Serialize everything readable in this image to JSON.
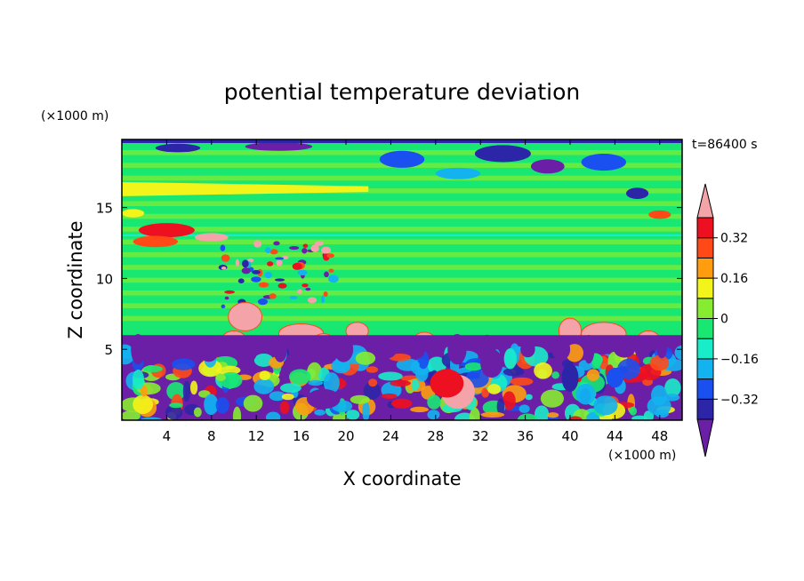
{
  "chart_data": {
    "type": "heatmap",
    "title": "potential temperature deviation",
    "xlabel": "X coordinate",
    "ylabel": "Z coordinate",
    "x_unit": "(×1000 m)",
    "y_unit": "(×1000 m)",
    "time_label": "t=86400 s",
    "x_range": [
      0,
      50
    ],
    "y_range": [
      0,
      19.8
    ],
    "x_ticks": [
      4,
      8,
      12,
      16,
      20,
      24,
      28,
      32,
      36,
      40,
      44,
      48
    ],
    "y_ticks": [
      5,
      10,
      15
    ],
    "colorbar": {
      "levels": [
        -0.4,
        -0.32,
        -0.24,
        -0.16,
        -0.08,
        0,
        0.08,
        0.16,
        0.24,
        0.32,
        0.4
      ],
      "labels": [
        {
          "value": 0.32,
          "text": "0.32"
        },
        {
          "value": 0.16,
          "text": "0.16"
        },
        {
          "value": 0,
          "text": "0"
        },
        {
          "value": -0.16,
          "text": "−0.16"
        },
        {
          "value": -0.32,
          "text": "−0.32"
        }
      ],
      "colors": [
        "#6a1fa6",
        "#2d25a8",
        "#1a50f0",
        "#13b3f0",
        "#18ecc8",
        "#18e872",
        "#86ec30",
        "#f2f41a",
        "#ff9d0f",
        "#ff4a18",
        "#ec1020",
        "#f4a3a8"
      ]
    },
    "regions": {
      "upper_background": "#18e872",
      "lower_stable_layer_top_km": 6.0,
      "lower_stable_layer_color": "#6a1fa6"
    }
  }
}
